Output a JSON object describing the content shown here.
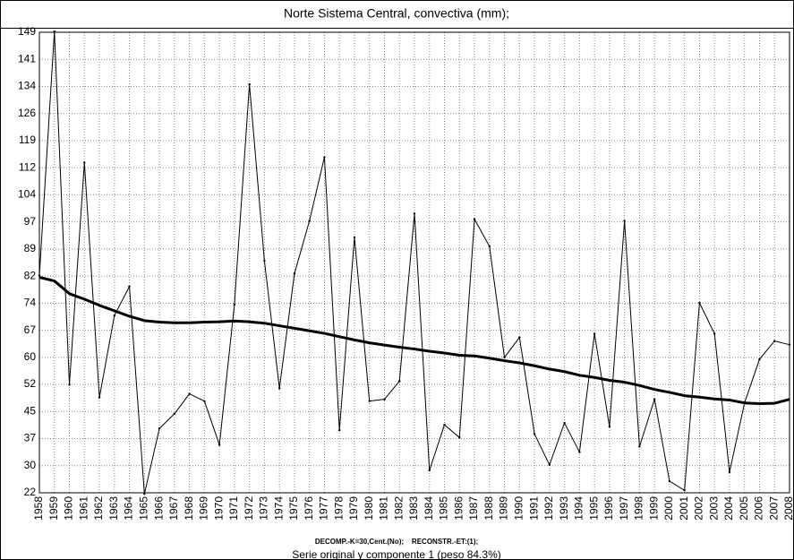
{
  "chart_data": {
    "type": "line",
    "title": "Norte Sistema Central, convectiva (mm);",
    "footnote": "DECOMP.-K=30,Cent.(No);    RECONSTR.-ET:(1);",
    "subtitle": "Serie original y componente 1 (peso 84.3%)",
    "x": [
      1958,
      1959,
      1960,
      1961,
      1962,
      1963,
      1964,
      1965,
      1966,
      1967,
      1968,
      1969,
      1970,
      1971,
      1972,
      1973,
      1974,
      1975,
      1976,
      1977,
      1978,
      1979,
      1980,
      1981,
      1982,
      1983,
      1984,
      1985,
      1986,
      1987,
      1988,
      1989,
      1990,
      1991,
      1992,
      1993,
      1994,
      1995,
      1996,
      1997,
      1998,
      1999,
      2000,
      2001,
      2002,
      2003,
      2004,
      2005,
      2006,
      2007,
      2008
    ],
    "series": [
      {
        "color": "#000000",
        "width": 1,
        "values": [
          82,
          149,
          52,
          113,
          48.5,
          71,
          79,
          22,
          40,
          44,
          49.5,
          47.5,
          35.5,
          74,
          134.5,
          86,
          51,
          82.5,
          97,
          114.5,
          39.5,
          92.5,
          47.5,
          48,
          53,
          99,
          28.5,
          41,
          37.5,
          97.5,
          90,
          59.5,
          65,
          38.5,
          30,
          41.5,
          33.5,
          66,
          40.5,
          97,
          35,
          48,
          25.5,
          23,
          74.5,
          66,
          28,
          47,
          59,
          64,
          63
        ]
      },
      {
        "color": "#000000",
        "width": 3,
        "values": [
          81.5,
          80.5,
          77,
          75.5,
          73.8,
          72.3,
          70.8,
          69.6,
          69.2,
          69,
          69,
          69.2,
          69.3,
          69.5,
          69.3,
          68.9,
          68.2,
          67.5,
          66.8,
          66.1,
          65.2,
          64.3,
          63.5,
          62.9,
          62.3,
          61.8,
          61.2,
          60.7,
          60.1,
          59.9,
          59.3,
          58.6,
          58,
          57.2,
          56.3,
          55.6,
          54.6,
          54,
          53.2,
          52.7,
          51.8,
          50.7,
          49.9,
          49,
          48.6,
          48.1,
          47.8,
          47,
          46.8,
          46.9,
          48
        ]
      }
    ],
    "xlim": [
      1958,
      2008
    ],
    "xticks": [
      1958,
      1959,
      1960,
      1961,
      1962,
      1963,
      1964,
      1965,
      1966,
      1967,
      1968,
      1969,
      1970,
      1971,
      1972,
      1973,
      1974,
      1975,
      1976,
      1977,
      1978,
      1979,
      1980,
      1981,
      1982,
      1983,
      1984,
      1985,
      1986,
      1987,
      1988,
      1989,
      1990,
      1991,
      1992,
      1993,
      1994,
      1995,
      1996,
      1997,
      1998,
      1999,
      2000,
      2001,
      2002,
      2003,
      2004,
      2005,
      2006,
      2007,
      2008
    ],
    "ylim": [
      22.32,
      148.8
    ],
    "yticks": [
      {
        "value": 22.32,
        "label": "22"
      },
      {
        "value": 29.76,
        "label": "30"
      },
      {
        "value": 37.2,
        "label": "37"
      },
      {
        "value": 44.64,
        "label": "45"
      },
      {
        "value": 52.08,
        "label": "52"
      },
      {
        "value": 59.52,
        "label": "60"
      },
      {
        "value": 66.96,
        "label": "67"
      },
      {
        "value": 74.4,
        "label": "74"
      },
      {
        "value": 81.84,
        "label": "82"
      },
      {
        "value": 89.28,
        "label": "89"
      },
      {
        "value": 96.72,
        "label": "97"
      },
      {
        "value": 104.16,
        "label": "104"
      },
      {
        "value": 111.6,
        "label": "112"
      },
      {
        "value": 119.04,
        "label": "119"
      },
      {
        "value": 126.48,
        "label": "126"
      },
      {
        "value": 133.92,
        "label": "134"
      },
      {
        "value": 141.36,
        "label": "141"
      },
      {
        "value": 148.8,
        "label": "149"
      }
    ],
    "grid": true
  }
}
